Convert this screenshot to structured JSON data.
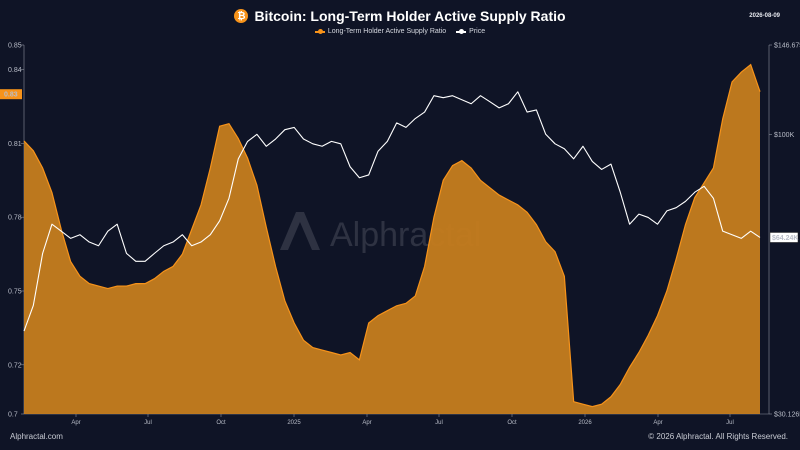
{
  "header": {
    "title": "Bitcoin: Long-Term Holder Active Supply Ratio",
    "date": "2026-08-09",
    "icon": "bitcoin-icon"
  },
  "footer": {
    "left": "Alphractal.com",
    "right": "© 2026 Alphractal. All Rights Reserved."
  },
  "watermark": "Alphractal",
  "colors": {
    "background": "#0f1426",
    "ratio": "#f7931a",
    "ratio_fill": "#c67d1e",
    "price": "#ffffff"
  },
  "chart_data": {
    "type": "area",
    "legend_placement": "top-center",
    "grid": false,
    "x_ticks": [
      "Apr",
      "Jul",
      "Oct",
      "2025",
      "Apr",
      "Jul",
      "Oct",
      "2026",
      "Apr",
      "Jul"
    ],
    "left_axis": {
      "range": [
        0.7,
        0.85
      ],
      "ticks": [
        "0.85",
        "0.84",
        "0.81",
        "0.78",
        "0.75",
        "0.72",
        "0.7"
      ],
      "current_label": "0.83"
    },
    "right_axis": {
      "scale": "log",
      "range": [
        30126,
        146675
      ],
      "ticks": [
        "$146.675K",
        "$100K",
        "$30.126K"
      ],
      "current_label": "$64.24K"
    },
    "series": [
      {
        "name": "Long-Term Holder Active Supply Ratio",
        "axis": "left",
        "values": [
          0.811,
          0.807,
          0.8,
          0.79,
          0.775,
          0.762,
          0.756,
          0.753,
          0.752,
          0.751,
          0.752,
          0.752,
          0.753,
          0.753,
          0.755,
          0.758,
          0.76,
          0.765,
          0.775,
          0.785,
          0.8,
          0.817,
          0.818,
          0.812,
          0.804,
          0.793,
          0.776,
          0.76,
          0.746,
          0.737,
          0.73,
          0.727,
          0.726,
          0.725,
          0.724,
          0.725,
          0.722,
          0.737,
          0.74,
          0.742,
          0.744,
          0.745,
          0.748,
          0.76,
          0.78,
          0.795,
          0.801,
          0.803,
          0.8,
          0.795,
          0.792,
          0.789,
          0.787,
          0.785,
          0.782,
          0.777,
          0.77,
          0.766,
          0.756,
          0.705,
          0.704,
          0.703,
          0.704,
          0.707,
          0.712,
          0.719,
          0.725,
          0.732,
          0.74,
          0.75,
          0.763,
          0.777,
          0.788,
          0.794,
          0.8,
          0.82,
          0.835,
          0.839,
          0.842,
          0.831
        ]
      },
      {
        "name": "Price",
        "axis": "right",
        "values": [
          43000,
          48000,
          60000,
          68000,
          66000,
          64000,
          65000,
          63000,
          62000,
          66000,
          68000,
          60000,
          58000,
          58000,
          60000,
          62000,
          63000,
          65000,
          62000,
          63000,
          65000,
          69000,
          76000,
          90000,
          97000,
          100000,
          95000,
          98000,
          102000,
          103000,
          98000,
          96000,
          95000,
          97000,
          96000,
          87000,
          83000,
          84000,
          93000,
          97000,
          105000,
          103000,
          107000,
          110000,
          118000,
          117000,
          118000,
          116000,
          114000,
          118000,
          115000,
          112000,
          114000,
          120000,
          110000,
          111000,
          100000,
          96000,
          94000,
          90000,
          95000,
          89000,
          86000,
          88000,
          78000,
          68000,
          71000,
          70000,
          68000,
          72000,
          73000,
          75000,
          78000,
          80000,
          76000,
          66000,
          65000,
          64000,
          66000,
          64240
        ]
      }
    ]
  }
}
